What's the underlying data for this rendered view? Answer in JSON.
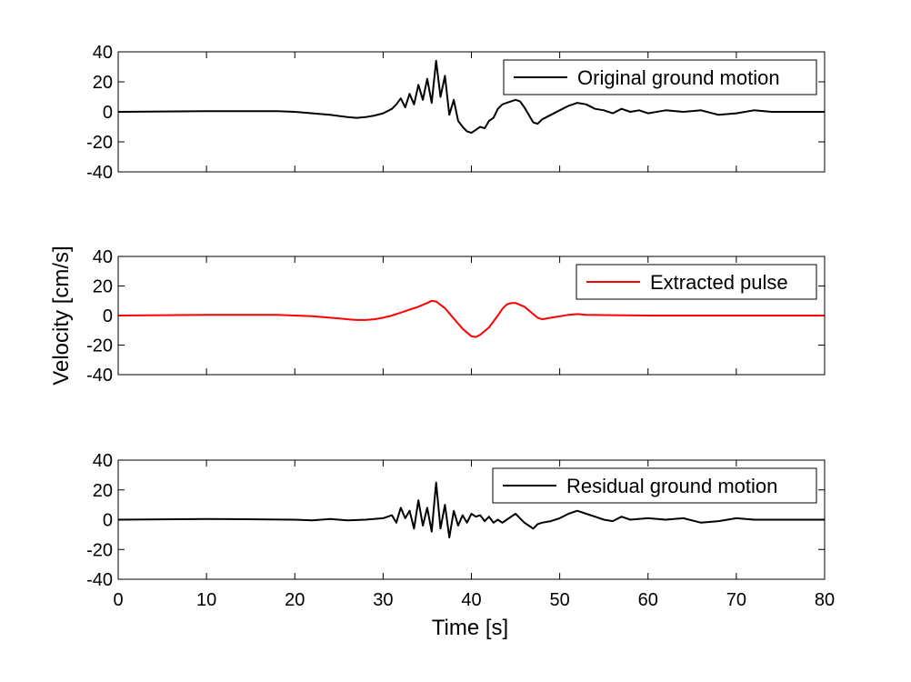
{
  "figure": {
    "ylabel": "Velocity [cm/s]",
    "xlabel": "Time [s]"
  },
  "chart_data": [
    {
      "type": "line",
      "title": "",
      "xlabel": "",
      "ylabel": "",
      "xlim": [
        0,
        80
      ],
      "ylim": [
        -40,
        40
      ],
      "xticks": [
        0,
        10,
        20,
        30,
        40,
        50,
        60,
        70,
        80
      ],
      "yticks": [
        -40,
        -20,
        0,
        20,
        40
      ],
      "xtick_labels_visible": false,
      "legend": {
        "position": "top-right"
      },
      "series": [
        {
          "name": "Original ground motion",
          "color": "#000000",
          "x": [
            0,
            10,
            18,
            20,
            22,
            24,
            26,
            27,
            28,
            29,
            30,
            31,
            31.5,
            32,
            32.5,
            33,
            33.5,
            34,
            34.5,
            35,
            35.5,
            36,
            36.5,
            37,
            37.5,
            38,
            38.5,
            39,
            39.5,
            40,
            40.5,
            41,
            41.5,
            42,
            42.5,
            43,
            43.5,
            44,
            44.5,
            45,
            45.5,
            46,
            46.5,
            47,
            47.5,
            48,
            49,
            50,
            51,
            52,
            53,
            54,
            55,
            56,
            57,
            58,
            59,
            60,
            62,
            64,
            66,
            68,
            70,
            72,
            74,
            76,
            78,
            80
          ],
          "y": [
            0,
            0.5,
            0.5,
            0,
            -1,
            -2,
            -3.5,
            -4,
            -3.5,
            -2.5,
            -1,
            2,
            5,
            9,
            3,
            12,
            5,
            18,
            8,
            22,
            6,
            34,
            10,
            24,
            -2,
            8,
            -6,
            -10,
            -13,
            -14,
            -12,
            -10,
            -11,
            -6,
            -4,
            2,
            5,
            6,
            7,
            8,
            7,
            3,
            -2,
            -7,
            -8,
            -5,
            -2,
            1,
            4,
            6,
            5,
            2,
            1,
            -1,
            2,
            0,
            1,
            -1,
            1,
            0,
            1,
            -2,
            -1,
            1,
            0,
            0,
            0,
            0
          ]
        }
      ]
    },
    {
      "type": "line",
      "title": "",
      "xlabel": "",
      "ylabel": "",
      "xlim": [
        0,
        80
      ],
      "ylim": [
        -40,
        40
      ],
      "xticks": [
        0,
        10,
        20,
        30,
        40,
        50,
        60,
        70,
        80
      ],
      "yticks": [
        -40,
        -20,
        0,
        20,
        40
      ],
      "xtick_labels_visible": false,
      "legend": {
        "position": "top-right"
      },
      "series": [
        {
          "name": "Extracted pulse",
          "color": "#ff0000",
          "x": [
            0,
            10,
            18,
            20,
            22,
            24,
            26,
            27,
            28,
            29,
            30,
            31,
            32,
            33,
            34,
            35,
            35.5,
            36,
            37,
            38,
            39,
            40,
            40.5,
            41,
            42,
            43,
            43.5,
            44,
            44.5,
            45,
            46,
            47,
            47.5,
            48,
            49,
            50,
            51,
            52,
            53,
            55,
            60,
            70,
            80
          ],
          "y": [
            0,
            0.5,
            0.5,
            0,
            -0.5,
            -1.5,
            -2.5,
            -3,
            -3,
            -2.5,
            -1.5,
            0,
            2,
            4,
            6,
            8.5,
            10,
            9.5,
            5,
            -2,
            -9,
            -14,
            -14.5,
            -13,
            -8,
            0,
            4.5,
            7.5,
            8.5,
            8.5,
            6,
            1,
            -1.5,
            -2.5,
            -1.5,
            -0.5,
            0.5,
            1,
            0.5,
            0.3,
            0,
            0,
            0
          ]
        }
      ]
    },
    {
      "type": "line",
      "title": "",
      "xlabel": "Time [s]",
      "ylabel": "",
      "xlim": [
        0,
        80
      ],
      "ylim": [
        -40,
        40
      ],
      "xticks": [
        0,
        10,
        20,
        30,
        40,
        50,
        60,
        70,
        80
      ],
      "yticks": [
        -40,
        -20,
        0,
        20,
        40
      ],
      "xtick_labels_visible": true,
      "legend": {
        "position": "top-right"
      },
      "series": [
        {
          "name": "Residual ground motion",
          "color": "#000000",
          "x": [
            0,
            10,
            20,
            22,
            24,
            26,
            28,
            30,
            31,
            31.5,
            32,
            32.5,
            33,
            33.5,
            34,
            34.5,
            35,
            35.5,
            36,
            36.5,
            37,
            37.5,
            38,
            38.5,
            39,
            39.5,
            40,
            40.5,
            41,
            41.5,
            42,
            42.5,
            43,
            43.5,
            44,
            44.5,
            45,
            45.5,
            46,
            46.5,
            47,
            47.5,
            48,
            49,
            50,
            51,
            52,
            53,
            54,
            55,
            56,
            57,
            58,
            60,
            62,
            64,
            66,
            68,
            70,
            72,
            74,
            76,
            78,
            80
          ],
          "y": [
            0,
            0.5,
            0,
            -0.5,
            0.5,
            -0.5,
            0,
            1,
            3,
            -2,
            8,
            1,
            6,
            -6,
            13,
            -4,
            8,
            -8,
            25,
            -6,
            10,
            -12,
            6,
            -4,
            3,
            -2,
            4,
            2,
            3,
            -1,
            2,
            -2,
            0,
            -2,
            0,
            2,
            4,
            1,
            -2,
            -4,
            -6,
            -3,
            -2,
            -1,
            1,
            4,
            6,
            4,
            2,
            0,
            -1,
            2,
            0,
            1,
            0,
            1,
            -2,
            -1,
            1,
            0,
            0,
            0,
            0,
            0
          ]
        }
      ]
    }
  ]
}
